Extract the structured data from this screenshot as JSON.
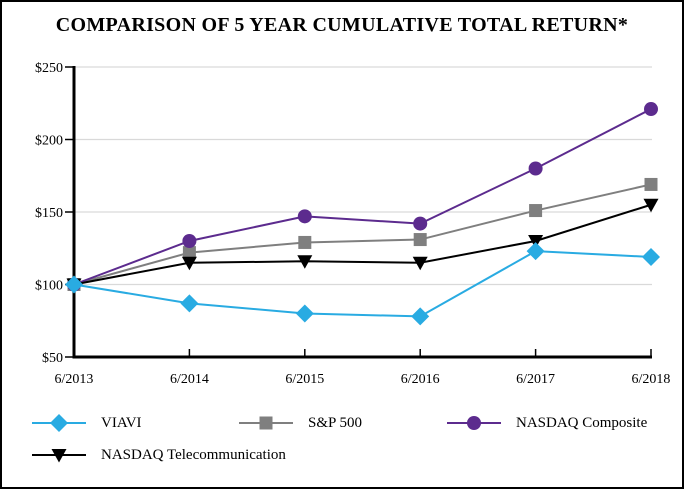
{
  "chart_data": {
    "type": "line",
    "title": "COMPARISON OF 5 YEAR CUMULATIVE TOTAL RETURN*",
    "categories": [
      "6/2013",
      "6/2014",
      "6/2015",
      "6/2016",
      "6/2017",
      "6/2018"
    ],
    "y_ticks": [
      50,
      100,
      150,
      200,
      250
    ],
    "y_tick_labels": [
      "$50",
      "$100",
      "$150",
      "$200",
      "$250"
    ],
    "ylim": [
      50,
      250
    ],
    "grid": "horizontal",
    "legend_position": "bottom",
    "series": [
      {
        "name": "VIAVI",
        "color": "#29abe2",
        "marker": "diamond",
        "values": [
          100,
          87,
          80,
          78,
          123,
          119
        ]
      },
      {
        "name": "S&P 500",
        "color": "#7f7f7f",
        "marker": "square",
        "values": [
          100,
          122,
          129,
          131,
          151,
          169
        ]
      },
      {
        "name": "NASDAQ Composite",
        "color": "#5c2b8e",
        "marker": "circle",
        "values": [
          100,
          130,
          147,
          142,
          180,
          221
        ]
      },
      {
        "name": "NASDAQ Telecommunication",
        "color": "#000000",
        "marker": "triangle-down",
        "values": [
          100,
          115,
          116,
          115,
          130,
          155
        ]
      }
    ],
    "colors": {
      "grid": "#d9d9d9",
      "axis": "#000000",
      "text": "#000000",
      "background": "#ffffff"
    }
  }
}
